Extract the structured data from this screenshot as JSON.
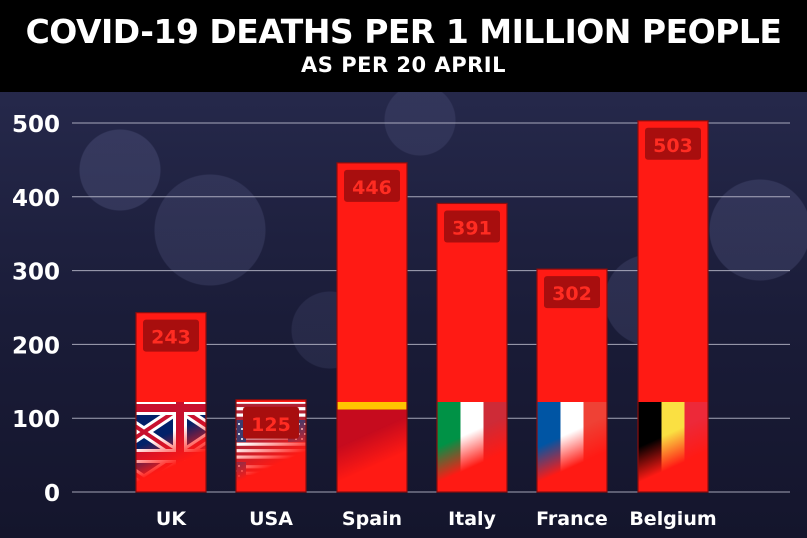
{
  "header": {
    "title": "COVID-19 DEATHS PER 1 MILLION PEOPLE",
    "subtitle": "AS PER 20 APRIL"
  },
  "chart_data": {
    "type": "bar",
    "categories": [
      "UK",
      "USA",
      "Spain",
      "Italy",
      "France",
      "Belgium"
    ],
    "values": [
      243,
      125,
      446,
      391,
      302,
      503
    ],
    "data_labels": [
      "243",
      "125",
      "446",
      "391",
      "302",
      "503"
    ],
    "yticks": [
      "0",
      "100",
      "200",
      "300",
      "400",
      "500"
    ],
    "ylim": [
      0,
      500
    ],
    "grid": true,
    "legend": "none",
    "bar_color": "#ff1a14",
    "label_box_color": "#a80e0e",
    "label_text_color": "#ff2c22"
  }
}
